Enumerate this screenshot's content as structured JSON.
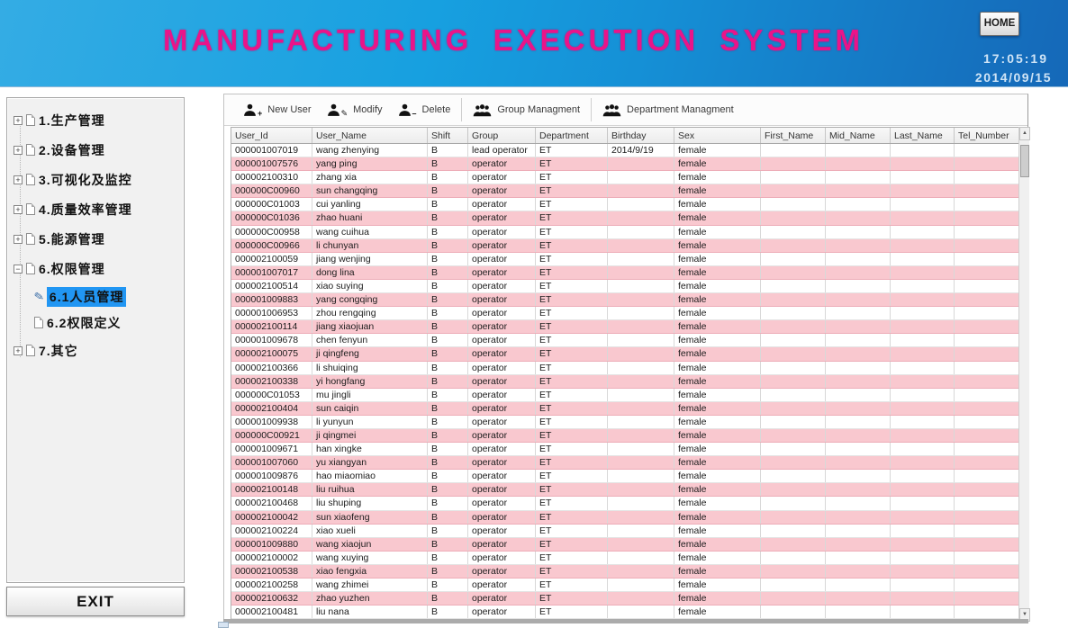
{
  "header": {
    "title": "MANUFACTURING EXECUTION SYSTEM",
    "home_label": "HOME",
    "time": "17:05:19",
    "date": "2014/09/15"
  },
  "sidebar": {
    "items": [
      {
        "label": "1.生产管理",
        "level": 1,
        "icon": "expand",
        "selected": false
      },
      {
        "label": "2.设备管理",
        "level": 1,
        "icon": "expand",
        "selected": false
      },
      {
        "label": "3.可视化及监控",
        "level": 1,
        "icon": "expand",
        "selected": false
      },
      {
        "label": "4.质量效率管理",
        "level": 1,
        "icon": "expand",
        "selected": false
      },
      {
        "label": "5.能源管理",
        "level": 1,
        "icon": "expand",
        "selected": false
      },
      {
        "label": "6.权限管理",
        "level": 1,
        "icon": "collapse",
        "selected": false
      },
      {
        "label": "6.1人员管理",
        "level": 2,
        "icon": "pencil",
        "selected": true
      },
      {
        "label": "6.2权限定义",
        "level": 2,
        "icon": "page",
        "selected": false
      },
      {
        "label": "7.其它",
        "level": 1,
        "icon": "expand",
        "selected": false
      }
    ],
    "exit_label": "EXIT"
  },
  "toolbar": {
    "buttons": [
      {
        "label": "New User",
        "icon": "user-add-icon"
      },
      {
        "label": "Modify",
        "icon": "user-edit-icon"
      },
      {
        "label": "Delete",
        "icon": "user-delete-icon"
      },
      {
        "label": "Group Managment",
        "icon": "group-icon"
      },
      {
        "label": "Department Managment",
        "icon": "department-group-icon"
      }
    ]
  },
  "table": {
    "columns": [
      "User_Id",
      "User_Name",
      "Shift",
      "Group",
      "Department",
      "Birthday",
      "Sex",
      "First_Name",
      "Mid_Name",
      "Last_Name",
      "Tel_Number"
    ],
    "rows": [
      [
        "000001007019",
        "wang zhenying",
        "B",
        "lead operator",
        "ET",
        "2014/9/19",
        "female",
        "",
        "",
        "",
        ""
      ],
      [
        "000001007576",
        "yang ping",
        "B",
        "operator",
        "ET",
        "",
        "female",
        "",
        "",
        "",
        ""
      ],
      [
        "000002100310",
        "zhang xia",
        "B",
        "operator",
        "ET",
        "",
        "female",
        "",
        "",
        "",
        ""
      ],
      [
        "000000C00960",
        "sun changqing",
        "B",
        "operator",
        "ET",
        "",
        "female",
        "",
        "",
        "",
        ""
      ],
      [
        "000000C01003",
        "cui yanling",
        "B",
        "operator",
        "ET",
        "",
        "female",
        "",
        "",
        "",
        ""
      ],
      [
        "000000C01036",
        "zhao huani",
        "B",
        "operator",
        "ET",
        "",
        "female",
        "",
        "",
        "",
        ""
      ],
      [
        "000000C00958",
        "wang cuihua",
        "B",
        "operator",
        "ET",
        "",
        "female",
        "",
        "",
        "",
        ""
      ],
      [
        "000000C00966",
        "li chunyan",
        "B",
        "operator",
        "ET",
        "",
        "female",
        "",
        "",
        "",
        ""
      ],
      [
        "000002100059",
        "jiang wenjing",
        "B",
        "operator",
        "ET",
        "",
        "female",
        "",
        "",
        "",
        ""
      ],
      [
        "000001007017",
        "dong lina",
        "B",
        "operator",
        "ET",
        "",
        "female",
        "",
        "",
        "",
        ""
      ],
      [
        "000002100514",
        "xiao suying",
        "B",
        "operator",
        "ET",
        "",
        "female",
        "",
        "",
        "",
        ""
      ],
      [
        "000001009883",
        "yang congqing",
        "B",
        "operator",
        "ET",
        "",
        "female",
        "",
        "",
        "",
        ""
      ],
      [
        "000001006953",
        "zhou rengqing",
        "B",
        "operator",
        "ET",
        "",
        "female",
        "",
        "",
        "",
        ""
      ],
      [
        "000002100114",
        "jiang xiaojuan",
        "B",
        "operator",
        "ET",
        "",
        "female",
        "",
        "",
        "",
        ""
      ],
      [
        "000001009678",
        "chen fenyun",
        "B",
        "operator",
        "ET",
        "",
        "female",
        "",
        "",
        "",
        ""
      ],
      [
        "000002100075",
        "ji qingfeng",
        "B",
        "operator",
        "ET",
        "",
        "female",
        "",
        "",
        "",
        ""
      ],
      [
        "000002100366",
        "li shuiqing",
        "B",
        "operator",
        "ET",
        "",
        "female",
        "",
        "",
        "",
        ""
      ],
      [
        "000002100338",
        "yi hongfang",
        "B",
        "operator",
        "ET",
        "",
        "female",
        "",
        "",
        "",
        ""
      ],
      [
        "000000C01053",
        "mu jingli",
        "B",
        "operator",
        "ET",
        "",
        "female",
        "",
        "",
        "",
        ""
      ],
      [
        "000002100404",
        "sun caiqin",
        "B",
        "operator",
        "ET",
        "",
        "female",
        "",
        "",
        "",
        ""
      ],
      [
        "000001009938",
        "li yunyun",
        "B",
        "operator",
        "ET",
        "",
        "female",
        "",
        "",
        "",
        ""
      ],
      [
        "000000C00921",
        "ji qingmei",
        "B",
        "operator",
        "ET",
        "",
        "female",
        "",
        "",
        "",
        ""
      ],
      [
        "000001009671",
        "han xingke",
        "B",
        "operator",
        "ET",
        "",
        "female",
        "",
        "",
        "",
        ""
      ],
      [
        "000001007060",
        "yu xiangyan",
        "B",
        "operator",
        "ET",
        "",
        "female",
        "",
        "",
        "",
        ""
      ],
      [
        "000001009876",
        "hao miaomiao",
        "B",
        "operator",
        "ET",
        "",
        "female",
        "",
        "",
        "",
        ""
      ],
      [
        "000002100148",
        "liu ruihua",
        "B",
        "operator",
        "ET",
        "",
        "female",
        "",
        "",
        "",
        ""
      ],
      [
        "000002100468",
        "liu shuping",
        "B",
        "operator",
        "ET",
        "",
        "female",
        "",
        "",
        "",
        ""
      ],
      [
        "000002100042",
        "sun xiaofeng",
        "B",
        "operator",
        "ET",
        "",
        "female",
        "",
        "",
        "",
        ""
      ],
      [
        "000002100224",
        "xiao xueli",
        "B",
        "operator",
        "ET",
        "",
        "female",
        "",
        "",
        "",
        ""
      ],
      [
        "000001009880",
        "wang xiaojun",
        "B",
        "operator",
        "ET",
        "",
        "female",
        "",
        "",
        "",
        ""
      ],
      [
        "000002100002",
        "wang xuying",
        "B",
        "operator",
        "ET",
        "",
        "female",
        "",
        "",
        "",
        ""
      ],
      [
        "000002100538",
        "xiao fengxia",
        "B",
        "operator",
        "ET",
        "",
        "female",
        "",
        "",
        "",
        ""
      ],
      [
        "000002100258",
        "wang zhimei",
        "B",
        "operator",
        "ET",
        "",
        "female",
        "",
        "",
        "",
        ""
      ],
      [
        "000002100632",
        "zhao yuzhen",
        "B",
        "operator",
        "ET",
        "",
        "female",
        "",
        "",
        "",
        ""
      ],
      [
        "000002100481",
        "liu nana",
        "B",
        "operator",
        "ET",
        "",
        "female",
        "",
        "",
        "",
        ""
      ]
    ]
  },
  "colors": {
    "header_blue_left": "#34ace4",
    "header_blue_right": "#1568b8",
    "title_magenta": "#ea1489",
    "row_pink": "#f9c8cf",
    "selection_blue": "#2196f3",
    "sidebar_gray": "#f1f1f1"
  }
}
